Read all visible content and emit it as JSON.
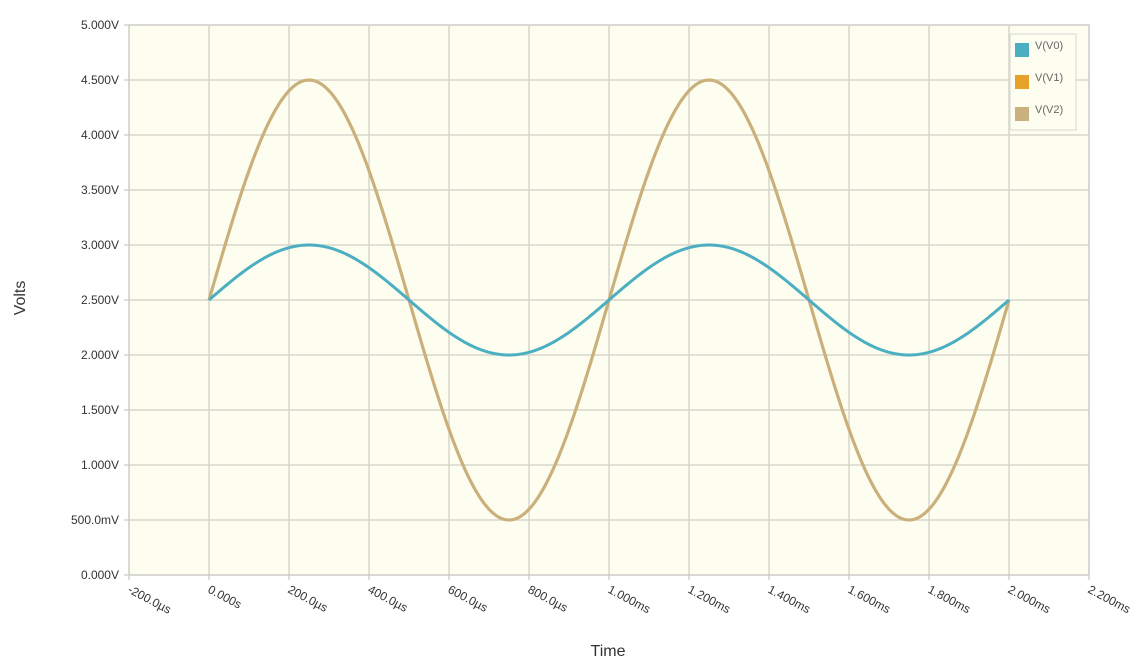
{
  "chart_data": {
    "type": "line",
    "xlabel": "Time",
    "ylabel": "Volts",
    "xlim": [
      -0.0002,
      0.0022
    ],
    "ylim": [
      0,
      5
    ],
    "grid": true,
    "legend_position": "top-right",
    "colors": {
      "plot_background": "#fdfdf0",
      "grid": "#d6d6cc",
      "frame": "#c8c8c8"
    },
    "x_ticks": [
      {
        "value": -0.0002,
        "label": "-200.0µs"
      },
      {
        "value": 0,
        "label": "0.000s"
      },
      {
        "value": 0.0002,
        "label": "200.0µs"
      },
      {
        "value": 0.0004,
        "label": "400.0µs"
      },
      {
        "value": 0.0006,
        "label": "600.0µs"
      },
      {
        "value": 0.0008,
        "label": "800.0µs"
      },
      {
        "value": 0.001,
        "label": "1.000ms"
      },
      {
        "value": 0.0012,
        "label": "1.200ms"
      },
      {
        "value": 0.0014,
        "label": "1.400ms"
      },
      {
        "value": 0.0016,
        "label": "1.600ms"
      },
      {
        "value": 0.0018,
        "label": "1.800ms"
      },
      {
        "value": 0.002,
        "label": "2.000ms"
      },
      {
        "value": 0.0022,
        "label": "2.200ms"
      }
    ],
    "y_ticks": [
      {
        "value": 0,
        "label": "0.000V"
      },
      {
        "value": 0.5,
        "label": "500.0mV"
      },
      {
        "value": 1,
        "label": "1.000V"
      },
      {
        "value": 1.5,
        "label": "1.500V"
      },
      {
        "value": 2,
        "label": "2.000V"
      },
      {
        "value": 2.5,
        "label": "2.500V"
      },
      {
        "value": 3,
        "label": "3.000V"
      },
      {
        "value": 3.5,
        "label": "3.500V"
      },
      {
        "value": 4,
        "label": "4.000V"
      },
      {
        "value": 4.5,
        "label": "4.500V"
      },
      {
        "value": 5,
        "label": "5.000V"
      }
    ],
    "x": [
      0,
      0.0001,
      0.00025,
      0.0004,
      0.0005,
      0.0006,
      0.00075,
      0.0009,
      0.001,
      0.0011,
      0.00125,
      0.0014,
      0.0015,
      0.0016,
      0.00175,
      0.0019,
      0.002
    ],
    "series": [
      {
        "name": "V(V0)",
        "color": "#4bafc1",
        "values": [
          2.5,
          2.794,
          3.0,
          2.794,
          2.5,
          2.206,
          2.0,
          2.206,
          2.5,
          2.794,
          3.0,
          2.794,
          2.5,
          2.206,
          2.0,
          2.206,
          2.5
        ]
      },
      {
        "name": "V(V1)",
        "color": "#e8a12a",
        "values": [
          2.5,
          3.676,
          4.5,
          3.676,
          2.5,
          1.324,
          0.5,
          1.324,
          2.5,
          3.676,
          4.5,
          3.676,
          2.5,
          1.324,
          0.5,
          1.324,
          2.5
        ]
      },
      {
        "name": "V(V2)",
        "color": "#c9b07f",
        "values": [
          2.5,
          3.676,
          4.5,
          3.676,
          2.5,
          1.324,
          0.5,
          1.324,
          2.5,
          3.676,
          4.5,
          3.676,
          2.5,
          1.324,
          0.5,
          1.324,
          2.5
        ]
      }
    ]
  }
}
